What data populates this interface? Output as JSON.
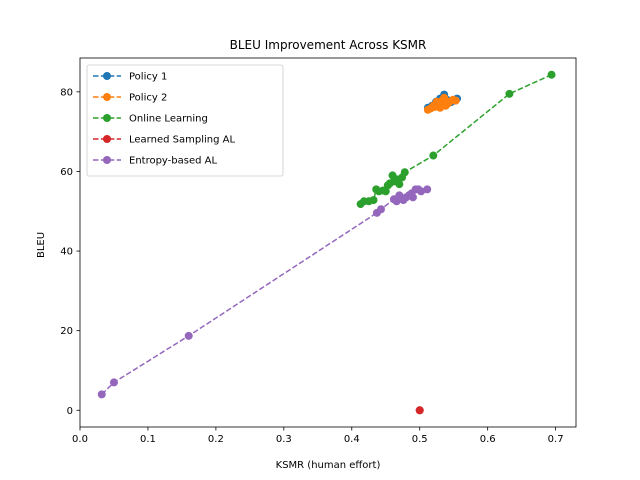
{
  "chart_data": {
    "type": "line",
    "title": "BLEU Improvement Across KSMR",
    "xlabel": "KSMR (human effort)",
    "ylabel": "BLEU",
    "xlim": [
      0.0,
      0.73
    ],
    "ylim": [
      -4.2,
      88.5
    ],
    "xticks": [
      0.0,
      0.1,
      0.2,
      0.3,
      0.4,
      0.5,
      0.6,
      0.7
    ],
    "yticks": [
      0,
      20,
      40,
      60,
      80
    ],
    "xtick_labels": [
      "0.0",
      "0.1",
      "0.2",
      "0.3",
      "0.4",
      "0.5",
      "0.6",
      "0.7"
    ],
    "ytick_labels": [
      "0",
      "20",
      "40",
      "60",
      "80"
    ],
    "grid": false,
    "legend_position": "upper-left",
    "series": [
      {
        "name": "Policy 1",
        "color": "#1f77b4",
        "x": [
          0.512,
          0.518,
          0.524,
          0.53,
          0.536,
          0.54,
          0.546,
          0.552,
          0.555
        ],
        "y": [
          76.0,
          76.5,
          77.5,
          78.3,
          79.3,
          78.0,
          77.4,
          77.8,
          78.3
        ]
      },
      {
        "name": "Policy 2",
        "color": "#ff7f0e",
        "x": [
          0.512,
          0.516,
          0.52,
          0.522,
          0.525,
          0.527,
          0.53,
          0.533,
          0.536,
          0.538,
          0.541,
          0.544,
          0.549,
          0.553
        ],
        "y": [
          75.5,
          75.8,
          76.5,
          76.2,
          77.5,
          76.8,
          76.0,
          77.8,
          78.5,
          76.5,
          77.0,
          77.5,
          78.0,
          77.8
        ]
      },
      {
        "name": "Online Learning",
        "color": "#2ca02c",
        "x": [
          0.413,
          0.418,
          0.425,
          0.432,
          0.436,
          0.44,
          0.446,
          0.45,
          0.453,
          0.456,
          0.46,
          0.463,
          0.466,
          0.47,
          0.474,
          0.478,
          0.52,
          0.632,
          0.694
        ],
        "y": [
          51.8,
          52.5,
          52.5,
          52.8,
          55.5,
          55.0,
          55.2,
          55.0,
          56.5,
          57.0,
          59.0,
          57.5,
          58.0,
          56.8,
          58.5,
          59.8,
          64.0,
          79.5,
          84.3
        ]
      },
      {
        "name": "Learned Sampling AL",
        "color": "#d62728",
        "x": [
          0.5,
          0.5
        ],
        "y": [
          0.0,
          0.0
        ]
      },
      {
        "name": "Entropy-based AL",
        "color": "#9467bd",
        "x": [
          0.032,
          0.05,
          0.16,
          0.437,
          0.443,
          0.462,
          0.466,
          0.47,
          0.473,
          0.476,
          0.48,
          0.484,
          0.488,
          0.49,
          0.494,
          0.498,
          0.502,
          0.511
        ],
        "y": [
          4.0,
          7.0,
          18.7,
          49.6,
          50.5,
          53.0,
          52.5,
          54.0,
          53.2,
          52.8,
          53.5,
          54.0,
          54.5,
          53.5,
          55.5,
          55.5,
          55.0,
          55.5
        ]
      }
    ]
  }
}
